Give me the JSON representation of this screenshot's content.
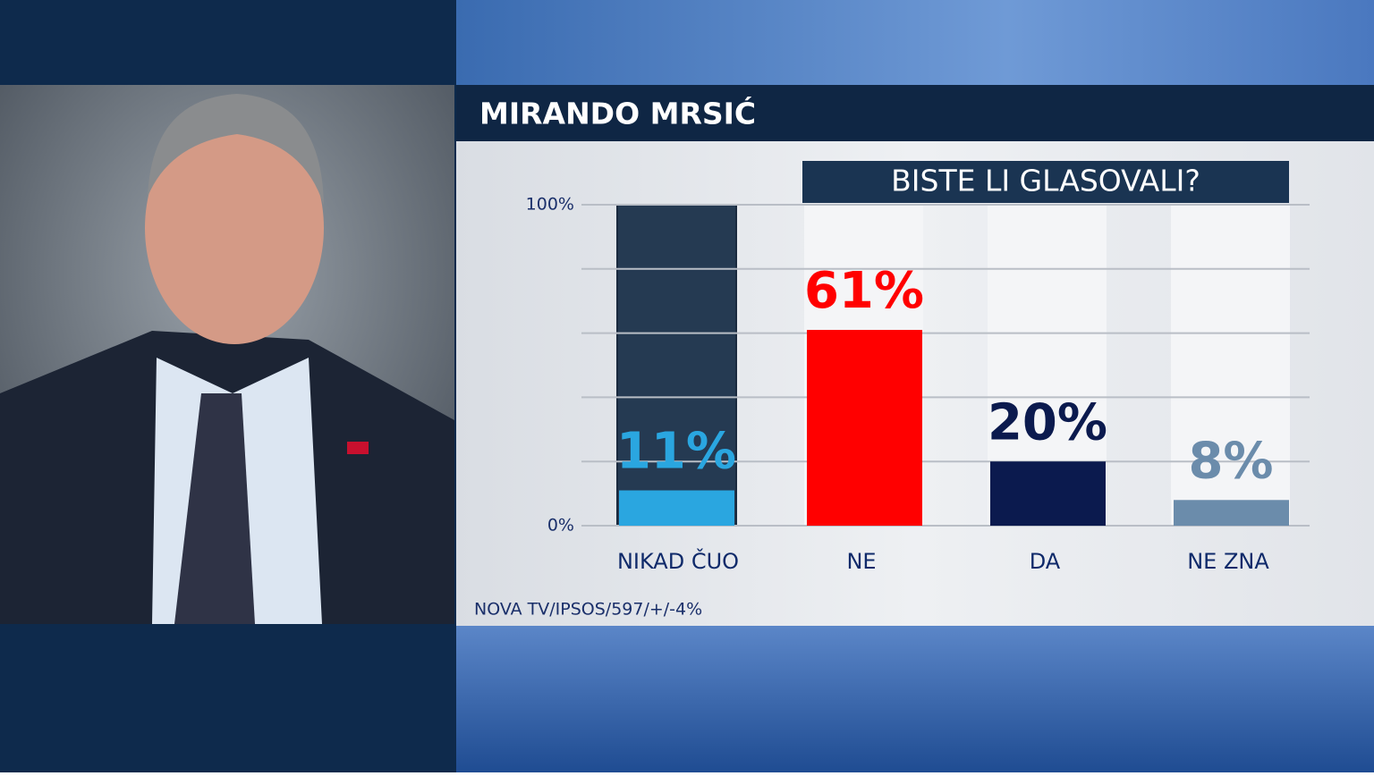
{
  "chart_data": {
    "type": "bar",
    "title": "MIRANDO MRSIĆ",
    "subtitle": "BISTE LI GLASOVALI?",
    "categories": [
      "NIKAD ČUO",
      "NE",
      "DA",
      "NE ZNA"
    ],
    "values": [
      11,
      61,
      20,
      8
    ],
    "value_labels": [
      "11%",
      "61%",
      "20%",
      "8%"
    ],
    "colors": [
      "#2aa6e0",
      "#ff0000",
      "#0b1a4e",
      "#6b8cab"
    ],
    "ylim": [
      0,
      100
    ],
    "yticks": [
      {
        "value": 0,
        "label": "0%"
      },
      {
        "value": 100,
        "label": "100%"
      }
    ],
    "gridlines": [
      0,
      20,
      40,
      60,
      80,
      100
    ],
    "grid": true,
    "source": "NOVA TV/IPSOS/597/+/-4%"
  }
}
